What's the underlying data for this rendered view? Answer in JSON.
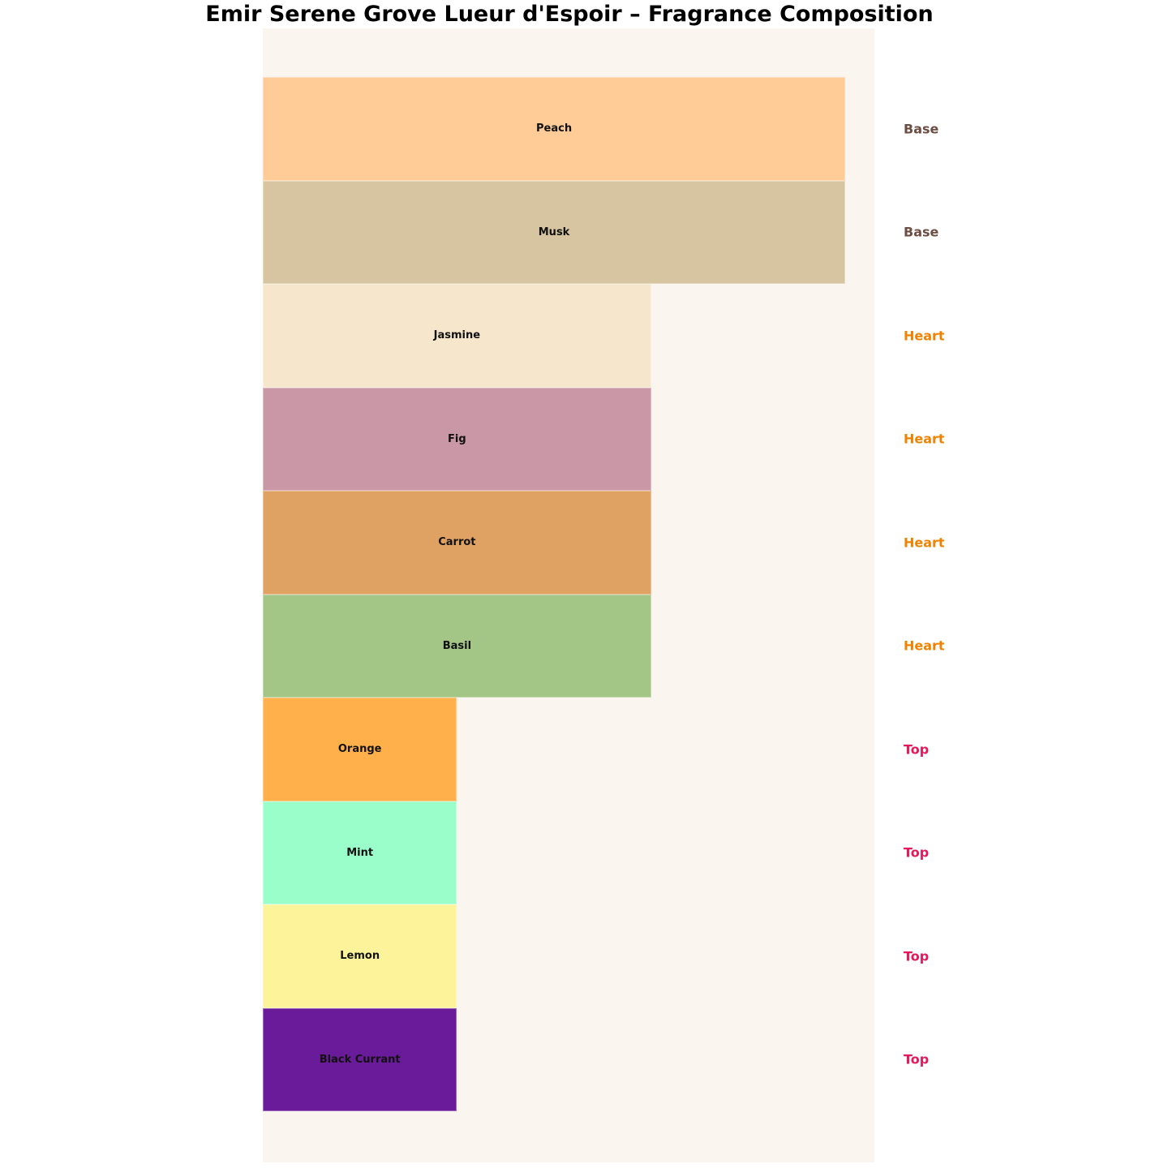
{
  "title": "Emir Serene Grove Lueur d'Espoir – Fragrance Composition",
  "panel": {
    "background": "#FAF6EF"
  },
  "chart_data": {
    "type": "bar",
    "orientation": "horizontal",
    "title": "Emir Serene Grove Lueur d'Espoir – Fragrance Composition",
    "xlabel": "",
    "ylabel": "",
    "grid": false,
    "legend_position": "none",
    "axes_visible": false,
    "value_axis_max": 3.15,
    "categories": [
      "Peach",
      "Musk",
      "Jasmine",
      "Fig",
      "Carrot",
      "Basil",
      "Orange",
      "Mint",
      "Lemon",
      "Black Currant"
    ],
    "values": [
      3,
      3,
      2,
      2,
      2,
      2,
      1,
      1,
      1,
      1
    ],
    "notes": [
      {
        "label": "Peach",
        "layer": "Base",
        "value": 3,
        "color": "#FFCB96"
      },
      {
        "label": "Musk",
        "layer": "Base",
        "value": 3,
        "color": "#D6C5A0"
      },
      {
        "label": "Jasmine",
        "layer": "Heart",
        "value": 2,
        "color": "#F5E6CC"
      },
      {
        "label": "Fig",
        "layer": "Heart",
        "value": 2,
        "color": "#C997A6"
      },
      {
        "label": "Carrot",
        "layer": "Heart",
        "value": 2,
        "color": "#E0A262"
      },
      {
        "label": "Basil",
        "layer": "Heart",
        "value": 2,
        "color": "#A3C687"
      },
      {
        "label": "Orange",
        "layer": "Top",
        "value": 1,
        "color": "#FFB04A"
      },
      {
        "label": "Mint",
        "layer": "Top",
        "value": 1,
        "color": "#9AFECB"
      },
      {
        "label": "Lemon",
        "layer": "Top",
        "value": 1,
        "color": "#FDF39B"
      },
      {
        "label": "Black Currant",
        "layer": "Top",
        "value": 1,
        "color": "#6A1B9A"
      }
    ],
    "layer_label_colors": {
      "Base": "#6D4C41",
      "Heart": "#EF8200",
      "Top": "#E2195B"
    }
  }
}
